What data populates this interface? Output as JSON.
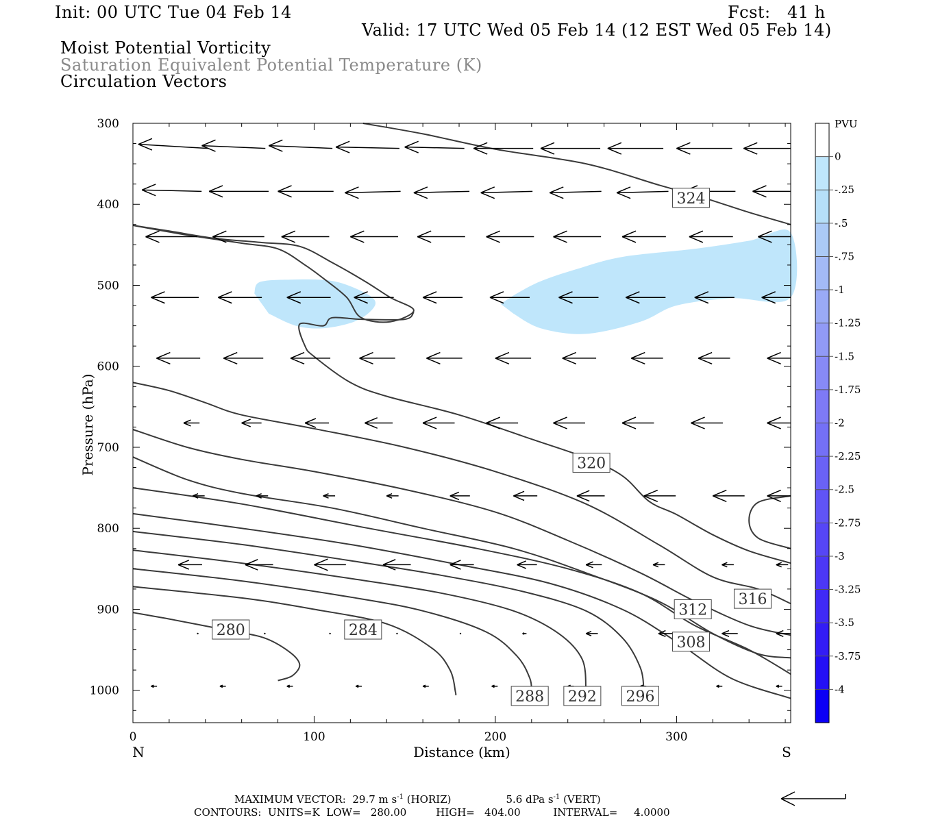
{
  "header": {
    "init": "Init: 00 UTC Tue 04 Feb 14",
    "fcst": "Fcst:   41 h",
    "valid": "Valid: 17 UTC Wed 05 Feb 14 (12 EST Wed 05 Feb 14)",
    "field1": "Moist Potential Vorticity",
    "field2": "Saturation Equivalent Potential Temperature (K)",
    "field3": "Circulation Vectors"
  },
  "chart_data": {
    "type": "cross-section",
    "xlabel": "Distance (km)",
    "ylabel": "Pressure (hPa)",
    "xlim": [
      0,
      363
    ],
    "ylim": [
      1040,
      300
    ],
    "x_ticks": [
      "0",
      "100",
      "200",
      "300"
    ],
    "x_tick_values": [
      0,
      100,
      200,
      300
    ],
    "y_ticks": [
      "300",
      "400",
      "500",
      "600",
      "700",
      "800",
      "900",
      "1000"
    ],
    "y_tick_values": [
      300,
      400,
      500,
      600,
      700,
      800,
      900,
      1000
    ],
    "left_end_label": "N",
    "right_end_label": "S",
    "colorbar": {
      "title": "PVU",
      "labels": [
        "0",
        "-.25",
        "-.5",
        "-.75",
        "-1",
        "-1.25",
        "-1.5",
        "-1.75",
        "-2",
        "-2.25",
        "-2.5",
        "-2.75",
        "-3",
        "-3.25",
        "-3.5",
        "-3.75",
        "-4"
      ],
      "colors": [
        "#ffffff",
        "#bfe6fb",
        "#b6dff8",
        "#abcaf6",
        "#a3baf6",
        "#9aaaf6",
        "#919af6",
        "#878af6",
        "#7e7af6",
        "#7470f6",
        "#6a62f6",
        "#6054f6",
        "#5646f6",
        "#4c38f6",
        "#402af6",
        "#331cf6",
        "#2410f6",
        "#0c00f6"
      ]
    },
    "mpv_shaded": [
      {
        "range": "-.25 to -.5",
        "color": "#bfe6fb",
        "polygon": [
          [
            67,
            510
          ],
          [
            70,
            496
          ],
          [
            87,
            493
          ],
          [
            108,
            494
          ],
          [
            122,
            503
          ],
          [
            133,
            517
          ],
          [
            132,
            530
          ],
          [
            122,
            545
          ],
          [
            105,
            553
          ],
          [
            90,
            550
          ],
          [
            75,
            535
          ]
        ]
      },
      {
        "range": "-.25 to -.5",
        "color": "#bfe6fb",
        "polygon": [
          [
            203,
            523
          ],
          [
            212,
            510
          ],
          [
            225,
            495
          ],
          [
            245,
            480
          ],
          [
            270,
            465
          ],
          [
            310,
            455
          ],
          [
            340,
            445
          ],
          [
            363,
            435
          ],
          [
            363,
            515
          ],
          [
            330,
            516
          ],
          [
            300,
            525
          ],
          [
            280,
            545
          ],
          [
            250,
            560
          ],
          [
            225,
            553
          ],
          [
            210,
            535
          ]
        ]
      }
    ],
    "theta_es_contours": [
      {
        "level": 280,
        "label_at": [
          54,
          925
        ],
        "points": [
          [
            0,
            904
          ],
          [
            20,
            912
          ],
          [
            50,
            925
          ],
          [
            72,
            935
          ],
          [
            86,
            952
          ],
          [
            92,
            968
          ],
          [
            88,
            982
          ],
          [
            80,
            988
          ]
        ]
      },
      {
        "level": 284,
        "label_at": [
          127,
          925
        ],
        "points": [
          [
            0,
            872
          ],
          [
            60,
            886
          ],
          [
            100,
            900
          ],
          [
            140,
            918
          ],
          [
            165,
            948
          ],
          [
            175,
            975
          ],
          [
            178,
            1002
          ],
          [
            178,
            1006
          ]
        ]
      },
      {
        "level": 288,
        "label_at": [
          219,
          1007
        ],
        "points": [
          [
            0,
            850
          ],
          [
            60,
            865
          ],
          [
            120,
            885
          ],
          [
            160,
            902
          ],
          [
            195,
            928
          ],
          [
            212,
            958
          ],
          [
            219,
            985
          ],
          [
            220,
            1002
          ]
        ]
      },
      {
        "level": 292,
        "label_at": [
          248,
          1007
        ],
        "points": [
          [
            0,
            827
          ],
          [
            60,
            843
          ],
          [
            120,
            862
          ],
          [
            170,
            880
          ],
          [
            210,
            902
          ],
          [
            235,
            930
          ],
          [
            248,
            962
          ],
          [
            250,
            1002
          ]
        ]
      },
      {
        "level": 296,
        "label_at": [
          280,
          1007
        ],
        "points": [
          [
            0,
            804
          ],
          [
            60,
            820
          ],
          [
            120,
            840
          ],
          [
            170,
            858
          ],
          [
            215,
            878
          ],
          [
            250,
            902
          ],
          [
            270,
            935
          ],
          [
            280,
            972
          ],
          [
            282,
            1002
          ]
        ]
      },
      {
        "level": 300,
        "points": [
          [
            0,
            782
          ],
          [
            60,
            800
          ],
          [
            120,
            820
          ],
          [
            180,
            845
          ],
          [
            230,
            868
          ],
          [
            270,
            900
          ],
          [
            300,
            940
          ],
          [
            330,
            985
          ],
          [
            363,
            1010
          ]
        ]
      },
      {
        "level": 304,
        "points": [
          [
            0,
            750
          ],
          [
            60,
            770
          ],
          [
            130,
            800
          ],
          [
            190,
            825
          ],
          [
            240,
            850
          ],
          [
            280,
            880
          ],
          [
            310,
            920
          ],
          [
            340,
            950
          ],
          [
            363,
            980
          ]
        ]
      },
      {
        "level": 308,
        "label_at": [
          308,
          940
        ],
        "points": [
          [
            0,
            712
          ],
          [
            30,
            740
          ],
          [
            60,
            757
          ],
          [
            110,
            775
          ],
          [
            160,
            800
          ],
          [
            210,
            825
          ],
          [
            250,
            855
          ],
          [
            290,
            890
          ],
          [
            320,
            930
          ],
          [
            345,
            955
          ],
          [
            363,
            960
          ]
        ]
      },
      {
        "level": 312,
        "label_at": [
          309,
          900
        ],
        "points": [
          [
            0,
            678
          ],
          [
            30,
            700
          ],
          [
            60,
            715
          ],
          [
            100,
            730
          ],
          [
            150,
            752
          ],
          [
            200,
            780
          ],
          [
            240,
            815
          ],
          [
            280,
            855
          ],
          [
            310,
            890
          ],
          [
            340,
            920
          ],
          [
            363,
            932
          ]
        ]
      },
      {
        "level": 316,
        "label_at": [
          342,
          887
        ],
        "points": [
          [
            0,
            620
          ],
          [
            20,
            630
          ],
          [
            40,
            645
          ],
          [
            60,
            660
          ],
          [
            100,
            677
          ],
          [
            150,
            700
          ],
          [
            200,
            730
          ],
          [
            250,
            770
          ],
          [
            290,
            820
          ],
          [
            320,
            860
          ],
          [
            345,
            875
          ],
          [
            363,
            893
          ]
        ]
      },
      {
        "level": 320,
        "label_at": [
          253,
          719
        ],
        "points": [
          [
            0,
            426
          ],
          [
            30,
            438
          ],
          [
            60,
            448
          ],
          [
            80,
            455
          ],
          [
            95,
            475
          ],
          [
            106,
            493
          ],
          [
            118,
            515
          ],
          [
            126,
            540
          ],
          [
            142,
            545
          ],
          [
            155,
            531
          ],
          [
            142,
            515
          ],
          [
            128,
            495
          ],
          [
            110,
            472
          ],
          [
            92,
            452
          ],
          [
            70,
            447
          ],
          [
            45,
            442
          ],
          [
            20,
            433
          ],
          [
            0,
            426
          ]
        ]
      },
      {
        "level": 320,
        "points": [
          [
            155,
            533
          ],
          [
            150,
            542
          ],
          [
            126,
            542
          ],
          [
            110,
            540
          ],
          [
            105,
            550
          ],
          [
            92,
            548
          ],
          [
            95,
            575
          ],
          [
            100,
            588
          ],
          [
            120,
            620
          ],
          [
            140,
            637
          ],
          [
            180,
            660
          ],
          [
            220,
            690
          ],
          [
            250,
            713
          ],
          [
            270,
            735
          ],
          [
            285,
            767
          ],
          [
            300,
            783
          ],
          [
            320,
            808
          ],
          [
            340,
            828
          ],
          [
            363,
            843
          ]
        ]
      },
      {
        "level": 324,
        "label_at": [
          308,
          392
        ],
        "points": [
          [
            127,
            300
          ],
          [
            160,
            313
          ],
          [
            200,
            332
          ],
          [
            250,
            350
          ],
          [
            290,
            376
          ],
          [
            315,
            392
          ],
          [
            340,
            410
          ],
          [
            363,
            425
          ]
        ]
      },
      {
        "level": 316,
        "points": [
          [
            363,
            760
          ],
          [
            345,
            768
          ],
          [
            340,
            790
          ],
          [
            345,
            812
          ],
          [
            363,
            825
          ]
        ]
      }
    ],
    "circulation_vectors": [
      {
        "p": 331,
        "xs": [
          3,
          38,
          75,
          112,
          150,
          188,
          225,
          262,
          300,
          337
        ],
        "u": [
          -35,
          -32,
          -32,
          -32,
          -30,
          -30,
          -30,
          -28,
          -28,
          -28
        ],
        "w": [
          3,
          2,
          2,
          1,
          1,
          0,
          0,
          0,
          0,
          0
        ]
      },
      {
        "p": 384,
        "xs": [
          5,
          42,
          80,
          117,
          155,
          192,
          230,
          267,
          304,
          342
        ],
        "u": [
          -30,
          -30,
          -28,
          -28,
          -28,
          -26,
          -26,
          -26,
          -26,
          -24
        ],
        "w": [
          1,
          0,
          0,
          -1,
          -1,
          -1,
          -1,
          -1,
          0,
          0
        ]
      },
      {
        "p": 440,
        "xs": [
          7,
          44,
          82,
          120,
          157,
          195,
          232,
          270,
          307,
          345
        ],
        "u": [
          -26,
          -26,
          -24,
          -24,
          -24,
          -24,
          -24,
          -22,
          -22,
          -22
        ],
        "w": [
          0,
          0,
          0,
          0,
          0,
          0,
          0,
          0,
          0,
          0
        ]
      },
      {
        "p": 515,
        "xs": [
          10,
          47,
          85,
          122,
          160,
          197,
          235,
          272,
          310,
          347
        ],
        "u": [
          -24,
          -22,
          -22,
          -20,
          -20,
          -20,
          -20,
          -20,
          -20,
          -20
        ],
        "w": [
          0,
          0,
          0,
          0,
          0,
          0,
          0,
          0,
          0,
          0
        ]
      },
      {
        "p": 590,
        "xs": [
          13,
          50,
          87,
          125,
          162,
          200,
          237,
          275,
          312,
          350
        ],
        "u": [
          -22,
          -20,
          -20,
          -18,
          -18,
          -18,
          -17,
          -16,
          -16,
          -16
        ],
        "w": [
          0,
          0,
          0,
          0,
          0,
          0,
          0,
          0,
          0,
          0
        ]
      },
      {
        "p": 670,
        "xs": [
          28,
          60,
          95,
          128,
          160,
          195,
          232,
          270,
          308,
          350
        ],
        "u": [
          -8,
          -10,
          -12,
          -14,
          -16,
          -16,
          -16,
          -16,
          -16,
          -16
        ],
        "w": [
          0,
          0,
          0,
          0,
          0,
          0,
          0,
          0,
          0,
          0
        ]
      },
      {
        "p": 760,
        "xs": [
          33,
          68,
          105,
          140,
          175,
          210,
          245,
          282,
          320,
          350
        ],
        "u": [
          -6,
          -6,
          -6,
          -6,
          -10,
          -12,
          -14,
          -16,
          -16,
          -16
        ],
        "w": [
          0,
          0,
          0,
          0,
          0,
          0,
          0,
          0,
          0,
          0
        ]
      },
      {
        "p": 845,
        "xs": [
          25,
          62,
          100,
          138,
          175,
          212,
          250,
          287,
          325,
          355
        ],
        "u": [
          -12,
          -14,
          -16,
          -14,
          -12,
          -10,
          -8,
          -6,
          -6,
          -6
        ],
        "w": [
          0,
          0,
          0,
          0,
          0,
          0,
          0,
          0,
          0,
          0
        ]
      },
      {
        "p": 930,
        "xs": [
          35,
          72,
          108,
          145,
          180,
          215,
          250,
          290,
          325,
          355
        ],
        "u": [
          -1,
          -1,
          -1,
          -1,
          -1,
          -2,
          -6,
          -8,
          -8,
          -8
        ],
        "w": [
          0,
          0,
          0,
          0,
          0,
          0,
          0,
          0,
          0,
          0
        ]
      },
      {
        "p": 995,
        "xs": [
          10,
          48,
          85,
          123,
          160,
          198,
          240,
          280,
          322,
          355
        ],
        "u": [
          -3,
          -3,
          -3,
          -3,
          -3,
          -3,
          -3,
          -3,
          -3,
          -3
        ],
        "w": [
          0,
          0,
          0,
          0,
          0,
          0,
          0,
          0,
          0,
          0
        ]
      }
    ]
  },
  "footer": {
    "max_vector": "MAXIMUM VECTOR:  29.7 m s",
    "max_vector_unit_sup": "-1",
    "horiz": " (HORIZ)",
    "vert_val": "5.6 dPa s",
    "vert_unit_sup": "-1",
    "vert": " (VERT)",
    "contours": "CONTOURS:  UNITS=K  LOW=   280.00         HIGH=   404.00          INTERVAL=     4.0000"
  }
}
